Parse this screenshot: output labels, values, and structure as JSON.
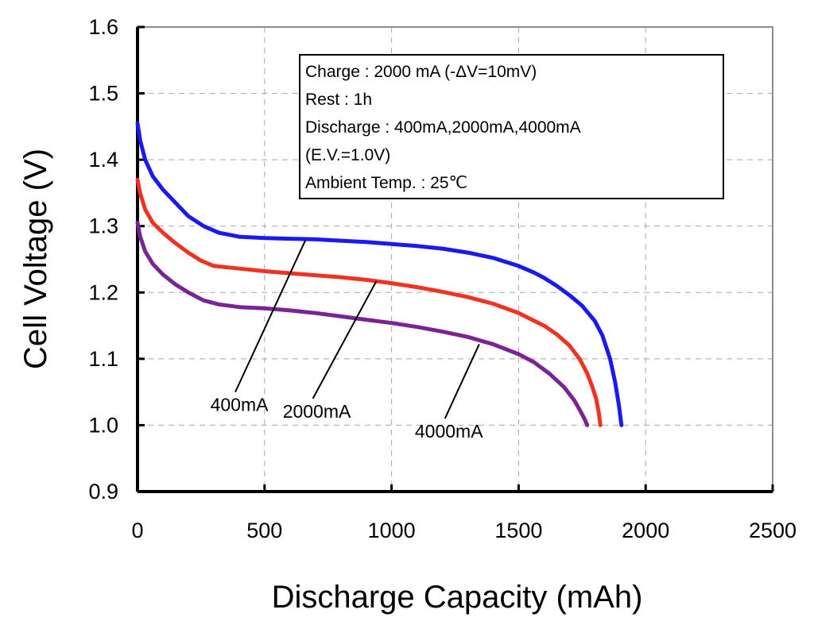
{
  "chart_data": {
    "type": "line",
    "xlabel": "Discharge Capacity (mAh)",
    "ylabel": "Cell Voltage (V)",
    "xlim": [
      0,
      2500
    ],
    "ylim": [
      0.9,
      1.6
    ],
    "x_ticks": [
      "0",
      "500",
      "1000",
      "1500",
      "2000",
      "2500"
    ],
    "y_ticks": [
      "0.9",
      "1.0",
      "1.1",
      "1.2",
      "1.3",
      "1.4",
      "1.5",
      "1.6"
    ],
    "grid": "dashed",
    "info_box": {
      "lines": [
        "Charge : 2000 mA (-ΔV=10mV)",
        "Rest : 1h",
        "Discharge : 400mA,2000mA,4000mA",
        "(E.V.=1.0V)",
        "Ambient Temp. : 25℃"
      ]
    },
    "series": [
      {
        "name": "400mA",
        "color": "#1a1aee",
        "x": [
          0,
          10,
          30,
          60,
          100,
          150,
          200,
          260,
          320,
          400,
          500,
          600,
          700,
          800,
          900,
          1000,
          1100,
          1200,
          1300,
          1400,
          1500,
          1560,
          1600,
          1650,
          1700,
          1750,
          1800,
          1830,
          1860,
          1880,
          1895,
          1905
        ],
        "values": [
          1.455,
          1.43,
          1.4,
          1.375,
          1.355,
          1.335,
          1.315,
          1.3,
          1.29,
          1.284,
          1.282,
          1.281,
          1.28,
          1.278,
          1.276,
          1.273,
          1.27,
          1.266,
          1.26,
          1.252,
          1.24,
          1.23,
          1.222,
          1.21,
          1.196,
          1.18,
          1.157,
          1.135,
          1.1,
          1.065,
          1.03,
          1.0
        ]
      },
      {
        "name": "2000mA",
        "color": "#ee3322",
        "x": [
          0,
          10,
          30,
          60,
          100,
          150,
          200,
          250,
          300,
          400,
          500,
          600,
          700,
          800,
          900,
          1000,
          1100,
          1200,
          1300,
          1400,
          1500,
          1600,
          1650,
          1700,
          1740,
          1770,
          1790,
          1805,
          1815,
          1822
        ],
        "values": [
          1.37,
          1.35,
          1.325,
          1.305,
          1.29,
          1.274,
          1.26,
          1.248,
          1.24,
          1.236,
          1.232,
          1.229,
          1.226,
          1.223,
          1.219,
          1.214,
          1.208,
          1.201,
          1.193,
          1.183,
          1.169,
          1.15,
          1.137,
          1.12,
          1.1,
          1.078,
          1.058,
          1.04,
          1.02,
          1.0
        ]
      },
      {
        "name": "4000mA",
        "color": "#7a2393",
        "x": [
          0,
          10,
          30,
          60,
          100,
          150,
          200,
          260,
          320,
          400,
          500,
          600,
          700,
          800,
          900,
          1000,
          1100,
          1200,
          1300,
          1400,
          1500,
          1560,
          1620,
          1680,
          1720,
          1745,
          1760,
          1770
        ],
        "values": [
          1.305,
          1.285,
          1.262,
          1.243,
          1.227,
          1.212,
          1.2,
          1.188,
          1.182,
          1.178,
          1.176,
          1.173,
          1.169,
          1.164,
          1.159,
          1.154,
          1.148,
          1.141,
          1.133,
          1.122,
          1.107,
          1.095,
          1.078,
          1.057,
          1.037,
          1.02,
          1.009,
          1.0
        ]
      }
    ],
    "annotations": [
      {
        "text": "400mA",
        "series": "400mA",
        "from": [
          385,
          1.05
        ],
        "to": [
          660,
          1.278
        ]
      },
      {
        "text": "2000mA",
        "series": "2000mA",
        "from": [
          690,
          1.04
        ],
        "to": [
          940,
          1.217
        ]
      },
      {
        "text": "4000mA",
        "series": "4000mA",
        "from": [
          1210,
          1.01
        ],
        "to": [
          1345,
          1.122
        ]
      }
    ]
  }
}
